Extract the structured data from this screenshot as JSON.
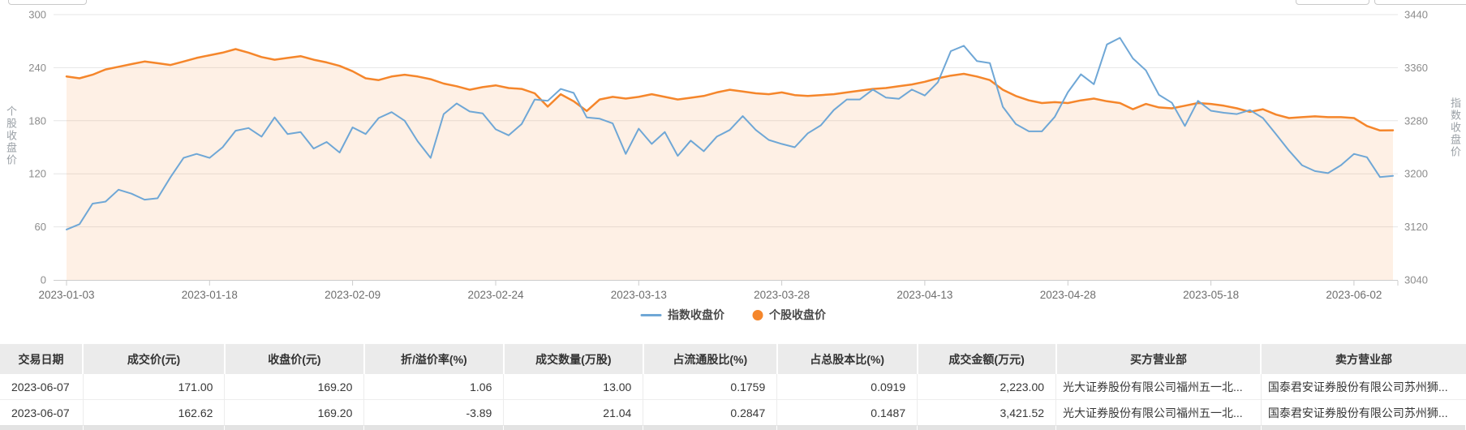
{
  "colors": {
    "blue_line": "#6FA7D6",
    "orange_line": "#F5862B",
    "area_fill": "rgba(245,134,43,0.12)",
    "grid": "#e6e6e6",
    "axis_line": "#cccccc",
    "tick_text": "#8c8c8c",
    "date_text": "#6e6e6e"
  },
  "partial_controls": {
    "left": "",
    "right_1": "",
    "right_2": ""
  },
  "chart_data": {
    "type": "line",
    "title": "",
    "x_tick_labels": [
      "2023-01-03",
      "2023-01-18",
      "2023-02-09",
      "2023-02-24",
      "2023-03-13",
      "2023-03-28",
      "2023-04-13",
      "2023-04-28",
      "2023-05-18",
      "2023-06-02"
    ],
    "x_tick_indices": [
      0,
      11,
      22,
      33,
      44,
      55,
      66,
      77,
      88,
      99
    ],
    "left_axis": {
      "title": "个股收盘价",
      "min": 0,
      "max": 300,
      "ticks": [
        300,
        240,
        180,
        120,
        60,
        0
      ]
    },
    "right_axis": {
      "title": "指数收盘价",
      "min": 3040,
      "max": 3440,
      "ticks": [
        3440,
        3360,
        3280,
        3200,
        3120,
        3040
      ]
    },
    "grid": true,
    "legend_position": "bottom-center",
    "series": [
      {
        "name": "指数收盘价",
        "axis": "right",
        "color": "#6FA7D6",
        "marker": "line",
        "area": false,
        "values": [
          3116,
          3124,
          3155,
          3158,
          3176,
          3170,
          3161,
          3163,
          3195,
          3224,
          3230,
          3224,
          3240,
          3265,
          3269,
          3256,
          3285,
          3260,
          3263,
          3238,
          3248,
          3232,
          3270,
          3260,
          3284,
          3293,
          3280,
          3249,
          3224,
          3290,
          3306,
          3294,
          3291,
          3267,
          3258,
          3275,
          3312,
          3310,
          3328,
          3322,
          3285,
          3283,
          3276,
          3230,
          3268,
          3245,
          3263,
          3227,
          3250,
          3234,
          3256,
          3266,
          3287,
          3266,
          3251,
          3245,
          3240,
          3261,
          3273,
          3296,
          3312,
          3312,
          3327,
          3315,
          3313,
          3327,
          3318,
          3338,
          3385,
          3393,
          3370,
          3367,
          3301,
          3275,
          3264,
          3264,
          3286,
          3323,
          3350,
          3335,
          3395,
          3405,
          3374,
          3356,
          3319,
          3307,
          3272,
          3310,
          3295,
          3292,
          3290,
          3296,
          3284,
          3260,
          3235,
          3213,
          3204,
          3201,
          3213,
          3230,
          3225,
          3195,
          3197
        ]
      },
      {
        "name": "个股收盘价",
        "axis": "left",
        "color": "#F5862B",
        "marker": "circle",
        "area": true,
        "area_color": "rgba(245,134,43,0.12)",
        "values": [
          230,
          228,
          232,
          238,
          241,
          244,
          247,
          245,
          243,
          247,
          251,
          254,
          257,
          261,
          257,
          252,
          249,
          251,
          253,
          249,
          246,
          242,
          236,
          228,
          226,
          230,
          232,
          230,
          227,
          222,
          219,
          215,
          218,
          220,
          217,
          216,
          211,
          196,
          210,
          202,
          191,
          204,
          207,
          205,
          207,
          210,
          207,
          204,
          206,
          208,
          212,
          215,
          213,
          211,
          210,
          212,
          209,
          208,
          209,
          210,
          212,
          214,
          216,
          217,
          219,
          221,
          224,
          228,
          231,
          233,
          230,
          226,
          215,
          208,
          203,
          200,
          201,
          200,
          203,
          205,
          202,
          200,
          193,
          199,
          195,
          194,
          197,
          200,
          199,
          197,
          194,
          190,
          193,
          187,
          183,
          184,
          185,
          184,
          184,
          183,
          174,
          169,
          169.2
        ]
      }
    ]
  },
  "table": {
    "columns": [
      {
        "label": "交易日期",
        "width": 5.65,
        "align": "left"
      },
      {
        "label": "成交价(元)",
        "width": 9.68,
        "align": "right"
      },
      {
        "label": "收盘价(元)",
        "width": 9.52,
        "align": "right"
      },
      {
        "label": "折/溢价率(%)",
        "width": 9.52,
        "align": "right"
      },
      {
        "label": "成交数量(万股)",
        "width": 9.52,
        "align": "right"
      },
      {
        "label": "占流通股比(%)",
        "width": 9.13,
        "align": "right"
      },
      {
        "label": "占总股本比(%)",
        "width": 9.57,
        "align": "right"
      },
      {
        "label": "成交金额(万元)",
        "width": 9.46,
        "align": "right"
      },
      {
        "label": "买方营业部",
        "width": 14.0,
        "align": "left"
      },
      {
        "label": "卖方营业部",
        "width": 13.95,
        "align": "left"
      }
    ],
    "rows": [
      [
        "2023-06-07",
        "171.00",
        "169.20",
        "1.06",
        "13.00",
        "0.1759",
        "0.0919",
        "2,223.00",
        "光大证券股份有限公司福州五一北...",
        "国泰君安证券股份有限公司苏州狮..."
      ],
      [
        "2023-06-07",
        "162.62",
        "169.20",
        "-3.89",
        "21.04",
        "0.2847",
        "0.1487",
        "3,421.52",
        "光大证券股份有限公司福州五一北...",
        "国泰君安证券股份有限公司苏州狮..."
      ]
    ]
  }
}
